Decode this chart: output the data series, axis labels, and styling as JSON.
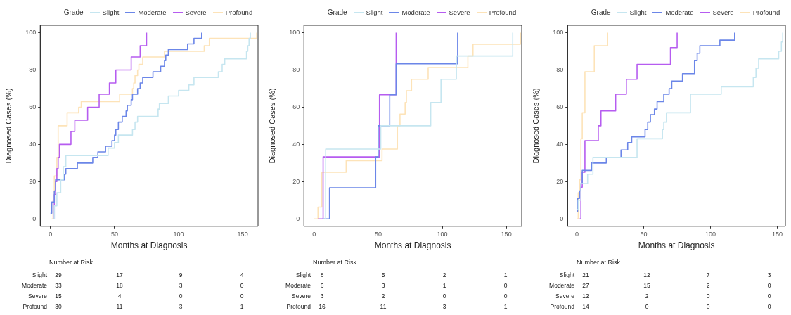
{
  "chart_data": [
    {
      "type": "step",
      "xlabel": "Months at Diagnosis",
      "ylabel": "Diagnosed Cases (%)",
      "legend_title": "Grade",
      "legend": "top",
      "grid": false,
      "xlim": [
        -8,
        162
      ],
      "xticks": [
        0,
        50,
        100,
        150
      ],
      "ylim": [
        -4,
        104
      ],
      "yticks": [
        0,
        20,
        40,
        60,
        80,
        100
      ],
      "series": [
        {
          "name": "Slight",
          "color": "#c6e6f0",
          "x": [
            2,
            3,
            5,
            8,
            10,
            12,
            45,
            50,
            53,
            64,
            66,
            68,
            84,
            85,
            92,
            100,
            108,
            112,
            131,
            134,
            136,
            153,
            154,
            155,
            156
          ],
          "values": [
            0,
            7,
            14,
            21,
            28,
            34,
            38,
            41,
            45,
            48,
            52,
            55,
            59,
            62,
            66,
            69,
            72,
            76,
            79,
            83,
            86,
            90,
            93,
            97,
            100
          ]
        },
        {
          "name": "Moderate",
          "color": "#6b86e8",
          "x": [
            0,
            1,
            3,
            4,
            11,
            12,
            21,
            33,
            37,
            43,
            48,
            50,
            51,
            53,
            56,
            59,
            60,
            63,
            64,
            68,
            70,
            72,
            80,
            86,
            89,
            90,
            92,
            107,
            112,
            118
          ],
          "values": [
            3,
            9,
            15,
            21,
            24,
            27,
            30,
            33,
            36,
            39,
            42,
            45,
            48,
            52,
            55,
            58,
            61,
            64,
            67,
            70,
            73,
            76,
            79,
            82,
            85,
            88,
            91,
            94,
            97,
            100
          ]
        },
        {
          "name": "Severe",
          "color": "#b65cf0",
          "x": [
            2,
            3,
            4,
            5,
            6,
            7,
            16,
            19,
            29,
            38,
            46,
            51,
            63,
            70,
            75
          ],
          "values": [
            0,
            13,
            20,
            27,
            33,
            40,
            47,
            53,
            60,
            67,
            73,
            80,
            87,
            93,
            100
          ]
        },
        {
          "name": "Profound",
          "color": "#fde3b8",
          "x": [
            1,
            2,
            3,
            5,
            6,
            13,
            22,
            24,
            54,
            64,
            65,
            66,
            68,
            69,
            72,
            89,
            120,
            124,
            161
          ],
          "values": [
            0,
            10,
            23,
            33,
            50,
            57,
            60,
            63,
            67,
            70,
            73,
            77,
            80,
            83,
            87,
            90,
            93,
            97,
            100
          ]
        }
      ]
    },
    {
      "type": "step",
      "xlabel": "Months at Diagnosis",
      "ylabel": "Diagnosed Cases (%)",
      "legend_title": "Grade",
      "legend": "top",
      "grid": false,
      "xlim": [
        -8,
        162
      ],
      "xticks": [
        0,
        50,
        100,
        150
      ],
      "ylim": [
        -4,
        104
      ],
      "yticks": [
        0,
        20,
        40,
        60,
        80,
        100
      ],
      "series": [
        {
          "name": "Slight",
          "color": "#c6e6f0",
          "x": [
            7,
            9,
            52,
            91,
            99,
            111,
            155
          ],
          "values": [
            0,
            37.5,
            50,
            62.5,
            75,
            87.5,
            100
          ]
        },
        {
          "name": "Moderate",
          "color": "#6b86e8",
          "x": [
            7,
            12,
            48,
            50,
            59,
            64,
            112
          ],
          "values": [
            0,
            16.7,
            33.3,
            50,
            66.7,
            83.3,
            100
          ]
        },
        {
          "name": "Severe",
          "color": "#b65cf0",
          "x": [
            3,
            7,
            51,
            64
          ],
          "values": [
            0,
            33.3,
            66.7,
            100
          ]
        },
        {
          "name": "Profound",
          "color": "#fde3b8",
          "x": [
            0,
            3,
            6,
            25,
            53,
            65,
            67,
            71,
            72,
            76,
            89,
            120,
            124,
            161
          ],
          "values": [
            0,
            6.3,
            25,
            31.3,
            37.5,
            50,
            56.3,
            62.5,
            68.8,
            75,
            81.3,
            87.5,
            93.8,
            100
          ]
        }
      ]
    },
    {
      "type": "step",
      "xlabel": "Months at Diagnosis",
      "ylabel": "Diagnosed Cases (%)",
      "legend_title": "Grade",
      "legend": "top",
      "grid": false,
      "xlim": [
        -7,
        156
      ],
      "xticks": [
        0,
        50,
        100,
        150
      ],
      "ylim": [
        -4,
        104
      ],
      "yticks": [
        0,
        20,
        40,
        60,
        80,
        100
      ],
      "series": [
        {
          "name": "Slight",
          "color": "#c6e6f0",
          "x": [
            0,
            1,
            3,
            8,
            12,
            45,
            64,
            65,
            67,
            85,
            108,
            132,
            134,
            136,
            151,
            153,
            154
          ],
          "values": [
            5,
            10,
            19,
            24,
            33,
            43,
            48,
            52,
            57,
            67,
            71,
            76,
            81,
            86,
            90,
            95,
            100
          ]
        },
        {
          "name": "Moderate",
          "color": "#6b86e8",
          "x": [
            0,
            0.5,
            2,
            3,
            4,
            11,
            22,
            33,
            38,
            41,
            51,
            53,
            55,
            58,
            60,
            65,
            69,
            71,
            79,
            88,
            90,
            92,
            107,
            118
          ],
          "values": [
            4,
            11,
            15,
            19,
            26,
            30,
            33,
            37,
            41,
            44,
            48,
            52,
            56,
            59,
            63,
            67,
            70,
            74,
            78,
            85,
            89,
            93,
            96,
            100
          ]
        },
        {
          "name": "Severe",
          "color": "#b65cf0",
          "x": [
            2,
            3,
            4,
            6,
            16,
            18,
            29,
            37,
            45,
            70,
            75
          ],
          "values": [
            0,
            17,
            25,
            42,
            50,
            58,
            67,
            75,
            83,
            92,
            100
          ]
        },
        {
          "name": "Profound",
          "color": "#fde3b8",
          "x": [
            0,
            1,
            2,
            3,
            4,
            6,
            13,
            23
          ],
          "values": [
            0,
            14,
            21,
            43,
            57,
            79,
            93,
            100
          ]
        }
      ]
    },
    {
      "type": "other",
      "title": "Number at Risk",
      "y_categories": [
        "Slight",
        "Moderate",
        "Severe",
        "Profound"
      ],
      "annotations": [
        "29",
        "17",
        "9",
        "4",
        "33",
        "18",
        "3",
        "0",
        "15",
        "4",
        "0",
        "0",
        "30",
        "11",
        "3",
        "1"
      ]
    },
    {
      "type": "other",
      "title": "Number at Risk",
      "y_categories": [
        "Slight",
        "Moderate",
        "Severe",
        "Profound"
      ],
      "annotations": [
        "8",
        "5",
        "2",
        "1",
        "6",
        "3",
        "1",
        "0",
        "3",
        "2",
        "0",
        "0",
        "16",
        "11",
        "3",
        "1"
      ]
    },
    {
      "type": "other",
      "title": "Number at Risk",
      "y_categories": [
        "Slight",
        "Moderate",
        "Severe",
        "Profound"
      ],
      "annotations": [
        "21",
        "12",
        "7",
        "3",
        "27",
        "15",
        "2",
        "0",
        "12",
        "2",
        "0",
        "0",
        "14",
        "0",
        "0",
        "0"
      ]
    }
  ]
}
